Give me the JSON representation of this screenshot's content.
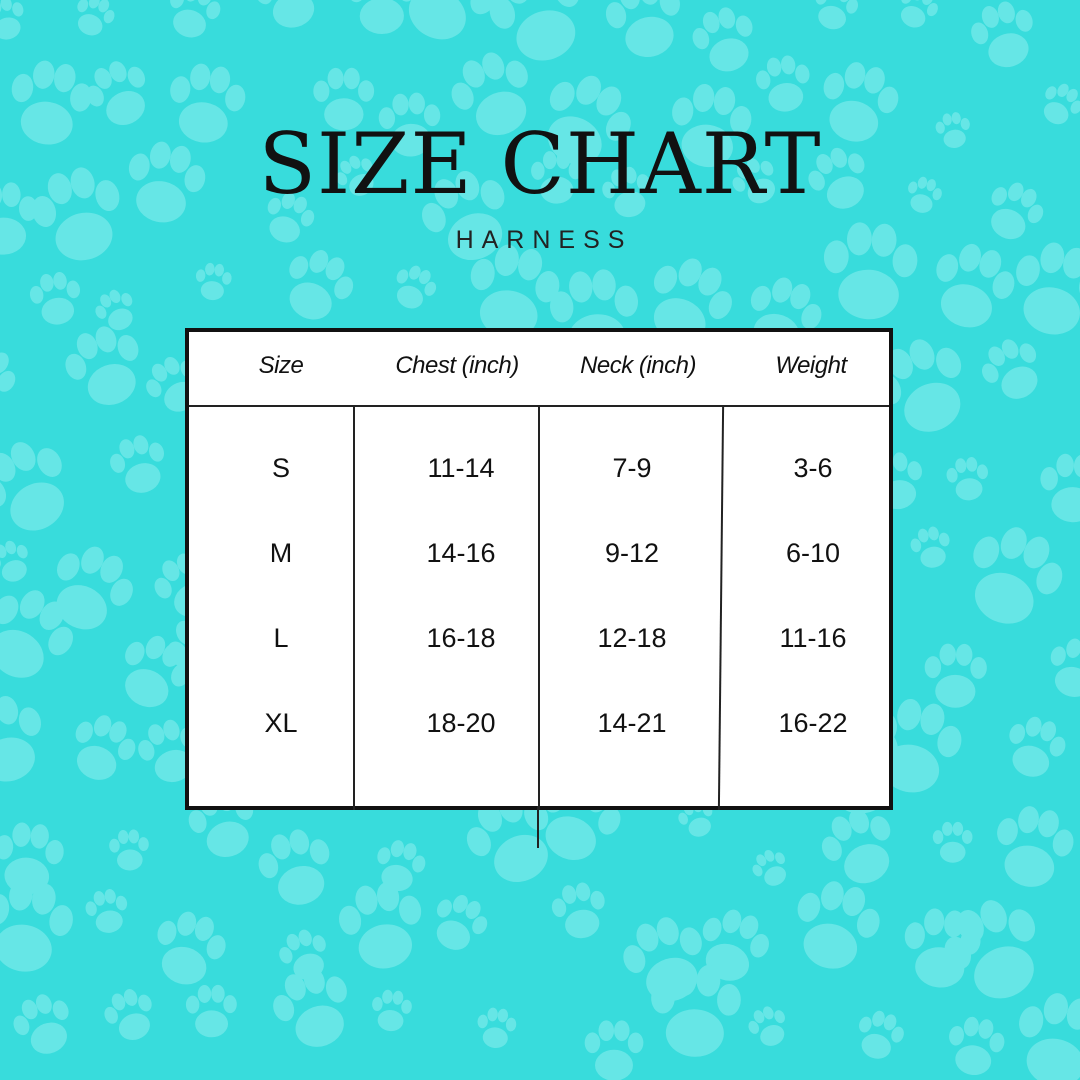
{
  "colors": {
    "background": "#38dcdc",
    "paw": "#66e6e6",
    "table": "#ffffff",
    "border": "#111111"
  },
  "title": "SIZE CHART",
  "subtitle": "HARNESS",
  "background_icon": "paw-print-icon",
  "table": {
    "headers": [
      "Size",
      "Chest (inch)",
      "Neck (inch)",
      "Weight"
    ],
    "rows": [
      [
        "S",
        "11-14",
        "7-9",
        "3-6"
      ],
      [
        "M",
        "14-16",
        "9-12",
        "6-10"
      ],
      [
        "L",
        "16-18",
        "12-18",
        "11-16"
      ],
      [
        "XL",
        "18-20",
        "14-21",
        "16-22"
      ]
    ]
  }
}
